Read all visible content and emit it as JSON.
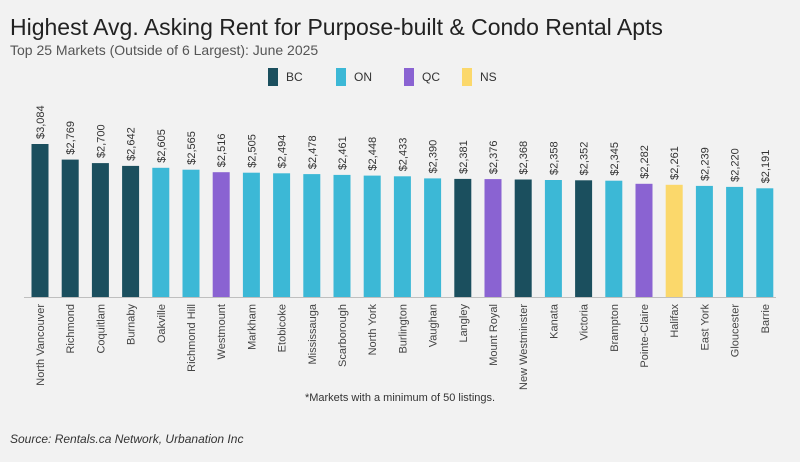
{
  "header": {
    "title": "Highest Avg. Asking Rent for Purpose-built & Condo Rental Apts",
    "subtitle": "Top 25 Markets (Outside of 6 Largest): June 2025"
  },
  "legend": [
    {
      "label": "BC",
      "color": "#1b4f5e"
    },
    {
      "label": "ON",
      "color": "#3cb8d6"
    },
    {
      "label": "QC",
      "color": "#8a63d2"
    },
    {
      "label": "NS",
      "color": "#fbd86b"
    }
  ],
  "chart_data": {
    "type": "bar",
    "title": "Highest Avg. Asking Rent for Purpose-built & Condo Rental Apts",
    "subtitle": "Top 25 Markets (Outside of 6 Largest): June 2025",
    "xlabel": "",
    "ylabel": "",
    "grid": false,
    "legend_position": "top",
    "categories": [
      "North Vancouver",
      "Richmond",
      "Coquitlam",
      "Burnaby",
      "Oakville",
      "Richmond Hill",
      "Westmount",
      "Markham",
      "Etobicoke",
      "Mississauga",
      "Scarborough",
      "North York",
      "Burlington",
      "Vaughan",
      "Langley",
      "Mount Royal",
      "New Westminster",
      "Kanata",
      "Victoria",
      "Brampton",
      "Pointe-Claire",
      "Halifax",
      "East York",
      "Gloucester",
      "Barrie"
    ],
    "values": [
      3084,
      2769,
      2700,
      2642,
      2605,
      2565,
      2516,
      2505,
      2494,
      2478,
      2461,
      2448,
      2433,
      2390,
      2381,
      2376,
      2368,
      2358,
      2352,
      2345,
      2282,
      2261,
      2239,
      2220,
      2191
    ],
    "value_labels": [
      "$3,084",
      "$2,769",
      "$2,700",
      "$2,642",
      "$2,605",
      "$2,565",
      "$2,516",
      "$2,505",
      "$2,494",
      "$2,478",
      "$2,461",
      "$2,448",
      "$2,433",
      "$2,390",
      "$2,381",
      "$2,376",
      "$2,368",
      "$2,358",
      "$2,352",
      "$2,345",
      "$2,282",
      "$2,261",
      "$2,239",
      "$2,220",
      "$2,191"
    ],
    "province": [
      "BC",
      "BC",
      "BC",
      "BC",
      "ON",
      "ON",
      "QC",
      "ON",
      "ON",
      "ON",
      "ON",
      "ON",
      "ON",
      "ON",
      "BC",
      "QC",
      "BC",
      "ON",
      "BC",
      "ON",
      "QC",
      "NS",
      "ON",
      "ON",
      "ON"
    ],
    "ylim": [
      0,
      3084
    ]
  },
  "footnote": "*Markets with a minimum of 50 listings.",
  "source": "Source: Rentals.ca Network, Urbanation Inc"
}
